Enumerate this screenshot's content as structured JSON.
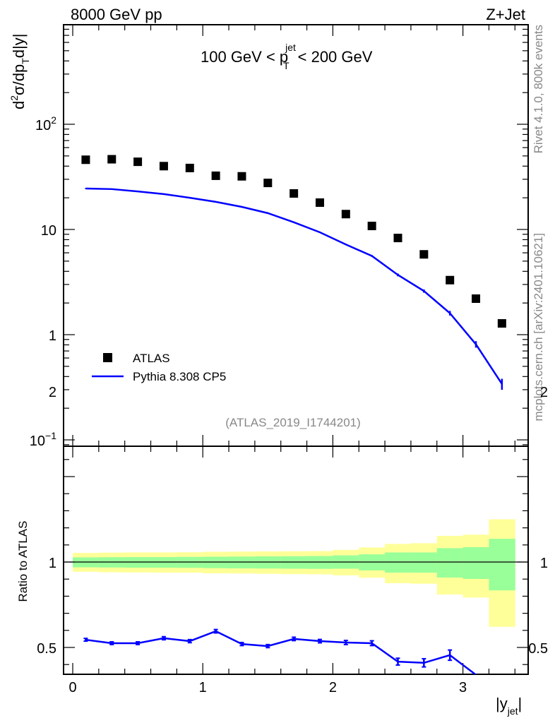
{
  "chart_data": {
    "type": "scatter",
    "header_left": "8000 GeV pp",
    "header_right": "Z+Jet",
    "title": {
      "pre": "100 GeV < p",
      "sup": "jet",
      "sub": "T",
      "post": " < 200 GeV"
    },
    "ylabel": {
      "d": "d",
      "sup2": "2",
      "main": "σ/dp",
      "sub": "T",
      "tail": "d|y|"
    },
    "xlabel": {
      "main": "|y",
      "sub": "jet",
      "close": "|"
    },
    "xlim": [
      -0.1,
      3.5
    ],
    "ylim_log": [
      0.08,
      300
    ],
    "ratio_ylim": [
      0.34,
      2.18
    ],
    "x_ticks": [
      "0",
      "1",
      "2",
      "3"
    ],
    "y_ticks": [
      {
        "base": "10",
        "exp": "2",
        "value": 100
      },
      {
        "base": "10",
        "exp": "",
        "value": 10
      },
      {
        "base": "1",
        "exp": "",
        "value": 1
      },
      {
        "base": "10",
        "exp": "−1",
        "value": 0.1
      }
    ],
    "ratio_ticks": [
      "0.5",
      "1",
      "2"
    ],
    "ratio_ylabel": "Ratio to ATLAS",
    "x": [
      0.1,
      0.3,
      0.5,
      0.7,
      0.9,
      1.1,
      1.3,
      1.5,
      1.7,
      1.9,
      2.1,
      2.3,
      2.5,
      2.7,
      2.9,
      3.1,
      3.3
    ],
    "series": [
      {
        "name": "ATLAS",
        "color": "#000000",
        "values": [
          46,
          46.5,
          44,
          40,
          38.4,
          32.4,
          32,
          27.7,
          22,
          18,
          14,
          10.8,
          8.3,
          5.8,
          3.3,
          2.2,
          1.28
        ]
      },
      {
        "name": "Pythia 8.308 CP5",
        "color": "#0000ff",
        "values": [
          24.5,
          24.2,
          23,
          21.7,
          20,
          18.3,
          16.4,
          14.3,
          11.7,
          9.4,
          7.2,
          5.6,
          3.7,
          2.6,
          1.6,
          0.81,
          0.34
        ],
        "rel_err": [
          0.01,
          0.01,
          0.01,
          0.01,
          0.01,
          0.01,
          0.01,
          0.01,
          0.012,
          0.012,
          0.015,
          0.018,
          0.03,
          0.035,
          0.05,
          0.07,
          0.12
        ],
        "ratio": [
          0.545,
          0.525,
          0.525,
          0.554,
          0.537,
          0.595,
          0.52,
          0.508,
          0.55,
          0.537,
          0.529,
          0.525,
          0.417,
          0.41,
          0.455,
          0.34,
          0.27
        ],
        "ratio_err": [
          0.008,
          0.008,
          0.008,
          0.009,
          0.009,
          0.01,
          0.009,
          0.009,
          0.01,
          0.01,
          0.012,
          0.014,
          0.02,
          0.024,
          0.03,
          0.04,
          0.05
        ]
      }
    ],
    "band_edges": [
      0,
      0.2,
      0.4,
      0.6,
      0.8,
      1.0,
      1.2,
      1.4,
      1.6,
      1.8,
      2.0,
      2.2,
      2.4,
      2.6,
      2.8,
      3.0,
      3.2,
      3.4
    ],
    "band_yellow_up": [
      0.053,
      0.055,
      0.056,
      0.056,
      0.057,
      0.06,
      0.061,
      0.062,
      0.063,
      0.064,
      0.071,
      0.085,
      0.106,
      0.11,
      0.153,
      0.16,
      0.25
    ],
    "band_yellow_down": [
      0.057,
      0.06,
      0.061,
      0.062,
      0.062,
      0.066,
      0.067,
      0.069,
      0.071,
      0.072,
      0.078,
      0.092,
      0.124,
      0.127,
      0.19,
      0.208,
      0.379
    ],
    "band_green_up": [
      0.027,
      0.028,
      0.029,
      0.029,
      0.03,
      0.031,
      0.032,
      0.033,
      0.034,
      0.035,
      0.039,
      0.045,
      0.056,
      0.056,
      0.081,
      0.087,
      0.136
    ],
    "band_green_down": [
      0.031,
      0.032,
      0.033,
      0.033,
      0.034,
      0.036,
      0.037,
      0.038,
      0.039,
      0.04,
      0.039,
      0.049,
      0.062,
      0.062,
      0.091,
      0.099,
      0.166
    ],
    "colors": {
      "yellow": "#ffff99",
      "green": "#99ff99"
    },
    "analysis_id": "(ATLAS_2019_I1744201)",
    "side_top": "Rivet 4.1.0,  800k events",
    "side_bottom": "mcplots.cern.ch [arXiv:2401.10621]"
  }
}
